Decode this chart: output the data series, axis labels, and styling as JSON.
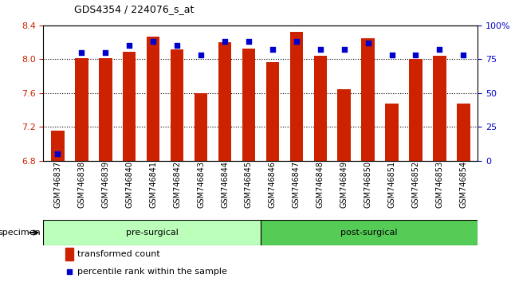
{
  "title": "GDS4354 / 224076_s_at",
  "samples": [
    "GSM746837",
    "GSM746838",
    "GSM746839",
    "GSM746840",
    "GSM746841",
    "GSM746842",
    "GSM746843",
    "GSM746844",
    "GSM746845",
    "GSM746846",
    "GSM746847",
    "GSM746848",
    "GSM746849",
    "GSM746850",
    "GSM746851",
    "GSM746852",
    "GSM746853",
    "GSM746854"
  ],
  "bar_values": [
    7.16,
    8.01,
    8.01,
    8.09,
    8.27,
    8.12,
    7.6,
    8.2,
    8.13,
    7.97,
    8.32,
    8.04,
    7.65,
    8.25,
    7.48,
    8.0,
    8.04,
    7.48
  ],
  "percentile_values": [
    5,
    80,
    80,
    85,
    88,
    85,
    78,
    88,
    88,
    82,
    88,
    82,
    82,
    87,
    78,
    78,
    82,
    78
  ],
  "bar_color": "#cc2200",
  "dot_color": "#0000cc",
  "ylim_left": [
    6.8,
    8.4
  ],
  "ylim_right": [
    0,
    100
  ],
  "yticks_left": [
    6.8,
    7.2,
    7.6,
    8.0,
    8.4
  ],
  "yticks_right": [
    0,
    25,
    50,
    75,
    100
  ],
  "ytick_labels_right": [
    "0",
    "25",
    "50",
    "75",
    "100%"
  ],
  "groups": [
    {
      "label": "pre-surgical",
      "start": 0,
      "end": 9,
      "color": "#bbffbb"
    },
    {
      "label": "post-surgical",
      "start": 9,
      "end": 18,
      "color": "#55cc55"
    }
  ],
  "legend_labels": [
    "transformed count",
    "percentile rank within the sample"
  ],
  "xlabel": "specimen",
  "bar_width": 0.55
}
